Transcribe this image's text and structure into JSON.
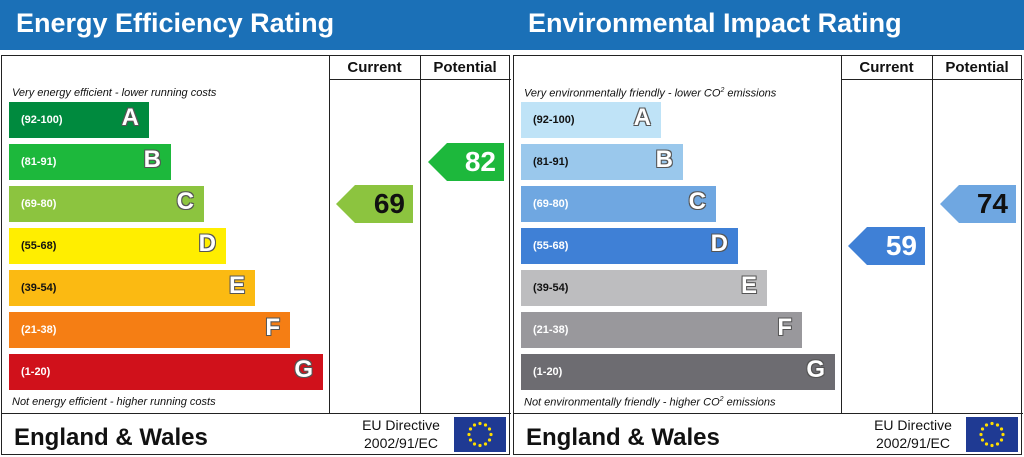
{
  "chart_data": [
    {
      "type": "bar",
      "title": "Energy Efficiency Rating",
      "columns": {
        "current": "Current",
        "potential": "Potential"
      },
      "top_note": "Very energy efficient - lower running costs",
      "bottom_note": "Not energy efficient - higher running costs",
      "bands": [
        {
          "letter": "A",
          "range": "(92-100)",
          "color": "#008a3e",
          "range_color": "#ffffff"
        },
        {
          "letter": "B",
          "range": "(81-91)",
          "color": "#1db83c",
          "range_color": "#ffffff"
        },
        {
          "letter": "C",
          "range": "(69-80)",
          "color": "#8cc43f",
          "range_color": "#ffffff"
        },
        {
          "letter": "D",
          "range": "(55-68)",
          "color": "#ffee00",
          "range_color": "#111111"
        },
        {
          "letter": "E",
          "range": "(39-54)",
          "color": "#fbba12",
          "range_color": "#111111"
        },
        {
          "letter": "F",
          "range": "(21-38)",
          "color": "#f57e14",
          "range_color": "#ffffff"
        },
        {
          "letter": "G",
          "range": "(1-20)",
          "color": "#d0111b",
          "range_color": "#ffffff"
        }
      ],
      "current": {
        "value": "69",
        "band": "C",
        "color": "#8cc43f"
      },
      "potential": {
        "value": "82",
        "band": "B",
        "color": "#1db83c"
      },
      "footer": "England & Wales",
      "directive_line1": "EU Directive",
      "directive_line2": "2002/91/EC"
    },
    {
      "type": "bar",
      "title": "Environmental Impact Rating",
      "columns": {
        "current": "Current",
        "potential": "Potential"
      },
      "top_note_main": "Very environmentally friendly - lower CO",
      "top_note_sup": "2",
      "top_note_end": " emissions",
      "bottom_note_main": "Not environmentally friendly - higher CO",
      "bottom_note_sup": "2",
      "bottom_note_end": " emissions",
      "bands": [
        {
          "letter": "A",
          "range": "(92-100)",
          "color": "#bfe3f7",
          "range_color": "#111111"
        },
        {
          "letter": "B",
          "range": "(81-91)",
          "color": "#9ac8ec",
          "range_color": "#111111"
        },
        {
          "letter": "C",
          "range": "(69-80)",
          "color": "#6fa7e1",
          "range_color": "#ffffff"
        },
        {
          "letter": "D",
          "range": "(55-68)",
          "color": "#3f80d6",
          "range_color": "#ffffff"
        },
        {
          "letter": "E",
          "range": "(39-54)",
          "color": "#bdbdbf",
          "range_color": "#111111"
        },
        {
          "letter": "F",
          "range": "(21-38)",
          "color": "#99989c",
          "range_color": "#ffffff"
        },
        {
          "letter": "G",
          "range": "(1-20)",
          "color": "#6d6c71",
          "range_color": "#ffffff"
        }
      ],
      "current": {
        "value": "59",
        "band": "D",
        "color": "#3f80d6"
      },
      "potential": {
        "value": "74",
        "band": "C",
        "color": "#6fa7e1"
      },
      "footer": "England & Wales",
      "directive_line1": "EU Directive",
      "directive_line2": "2002/91/EC"
    }
  ]
}
